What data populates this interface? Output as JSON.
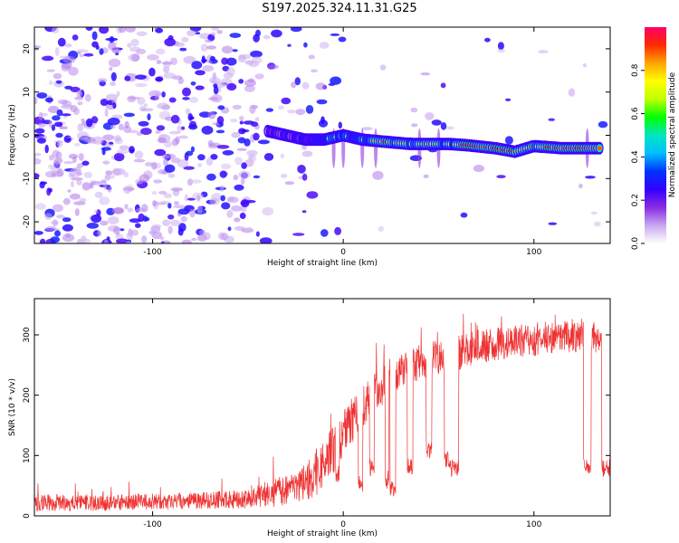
{
  "figure": {
    "title": "S197.2025.324.11.31.G25"
  },
  "chart_data": [
    {
      "type": "heatmap",
      "title": "S197.2025.324.11.31.G25",
      "xlabel": "Height of straight line (km)",
      "ylabel": "Frequency (Hz)",
      "xlim": [
        -162,
        140
      ],
      "ylim": [
        -25,
        25
      ],
      "xticks": [
        -100,
        0,
        100
      ],
      "xtick_labels": [
        "-100",
        "0",
        "100"
      ],
      "yticks": [
        -20,
        -10,
        0,
        10,
        20
      ],
      "ytick_labels": [
        "-20",
        "-10",
        "0",
        "10",
        "20"
      ],
      "colorbar": {
        "label": "Normalized spectral amplitude",
        "range": [
          0.0,
          1.0
        ],
        "ticks": [
          0.0,
          0.2,
          0.4,
          0.6,
          0.8
        ],
        "tick_labels": [
          "0.0",
          "0.2",
          "0.4",
          "0.6",
          "0.8"
        ],
        "colormap": [
          "#ffffff",
          "#c8a8f0",
          "#8a2be2",
          "#3300ff",
          "#0033ff",
          "#00bfff",
          "#00e5c0",
          "#00ff00",
          "#bfff00",
          "#ffff00",
          "#ffa500",
          "#ff2a00",
          "#ff0066"
        ]
      },
      "signal_band": {
        "description": "dominant narrow tone near 0 Hz drifting slightly below 0",
        "points": [
          {
            "x": -40,
            "f": 1.0,
            "a": 0.3
          },
          {
            "x": -20,
            "f": -1.0,
            "a": 0.45
          },
          {
            "x": -10,
            "f": -1.0,
            "a": 0.6
          },
          {
            "x": 0,
            "f": 0.0,
            "a": 0.6
          },
          {
            "x": 10,
            "f": -1.0,
            "a": 0.65
          },
          {
            "x": 22,
            "f": -1.5,
            "a": 0.85
          },
          {
            "x": 35,
            "f": -2.0,
            "a": 0.65
          },
          {
            "x": 45,
            "f": -2.0,
            "a": 0.85
          },
          {
            "x": 55,
            "f": -2.0,
            "a": 0.6
          },
          {
            "x": 65,
            "f": -2.3,
            "a": 0.95
          },
          {
            "x": 80,
            "f": -3.0,
            "a": 0.95
          },
          {
            "x": 90,
            "f": -3.8,
            "a": 0.85
          },
          {
            "x": 100,
            "f": -2.5,
            "a": 0.8
          },
          {
            "x": 115,
            "f": -3.0,
            "a": 0.95
          },
          {
            "x": 135,
            "f": -3.0,
            "a": 0.9
          }
        ]
      }
    },
    {
      "type": "line",
      "xlabel": "Height of straight line (km)",
      "ylabel": "SNR (10 * v/v)",
      "xlim": [
        -162,
        140
      ],
      "ylim": [
        0,
        360
      ],
      "xticks": [
        -100,
        0,
        100
      ],
      "xtick_labels": [
        "-100",
        "0",
        "100"
      ],
      "yticks": [
        0,
        100,
        200,
        300
      ],
      "ytick_labels": [
        "0",
        "100",
        "200",
        "300"
      ],
      "series": [
        {
          "name": "SNR",
          "color": "#ee3333",
          "envelope": [
            {
              "x": -162,
              "base": 22,
              "noise": 14
            },
            {
              "x": -120,
              "base": 22,
              "noise": 14
            },
            {
              "x": -80,
              "base": 25,
              "noise": 14
            },
            {
              "x": -50,
              "base": 28,
              "noise": 16
            },
            {
              "x": -35,
              "base": 40,
              "noise": 25
            },
            {
              "x": -25,
              "base": 45,
              "noise": 25
            },
            {
              "x": -15,
              "base": 70,
              "noise": 40
            },
            {
              "x": -5,
              "base": 110,
              "noise": 40
            },
            {
              "x": 5,
              "base": 160,
              "noise": 40
            },
            {
              "x": 15,
              "base": 195,
              "noise": 35
            },
            {
              "x": 25,
              "base": 230,
              "noise": 35
            },
            {
              "x": 40,
              "base": 255,
              "noise": 30
            },
            {
              "x": 55,
              "base": 265,
              "noise": 30
            },
            {
              "x": 70,
              "base": 280,
              "noise": 28
            },
            {
              "x": 90,
              "base": 290,
              "noise": 28
            },
            {
              "x": 110,
              "base": 295,
              "noise": 28
            },
            {
              "x": 125,
              "base": 300,
              "noise": 28
            },
            {
              "x": 140,
              "base": 290,
              "noise": 28
            }
          ],
          "dips": [
            {
              "x": -3,
              "v": 70,
              "w": 1.0
            },
            {
              "x": 9,
              "v": 55,
              "w": 1.2
            },
            {
              "x": 15,
              "v": 80,
              "w": 1.2
            },
            {
              "x": 23,
              "v": 60,
              "w": 1.0
            },
            {
              "x": 26,
              "v": 45,
              "w": 1.5
            },
            {
              "x": 35,
              "v": 80,
              "w": 1.5
            },
            {
              "x": 45,
              "v": 110,
              "w": 1.5
            },
            {
              "x": 55,
              "v": 95,
              "w": 2.0
            },
            {
              "x": 58,
              "v": 80,
              "w": 2.5
            },
            {
              "x": 128,
              "v": 80,
              "w": 2.0
            },
            {
              "x": 138,
              "v": 80,
              "w": 2.5
            }
          ]
        }
      ]
    }
  ]
}
